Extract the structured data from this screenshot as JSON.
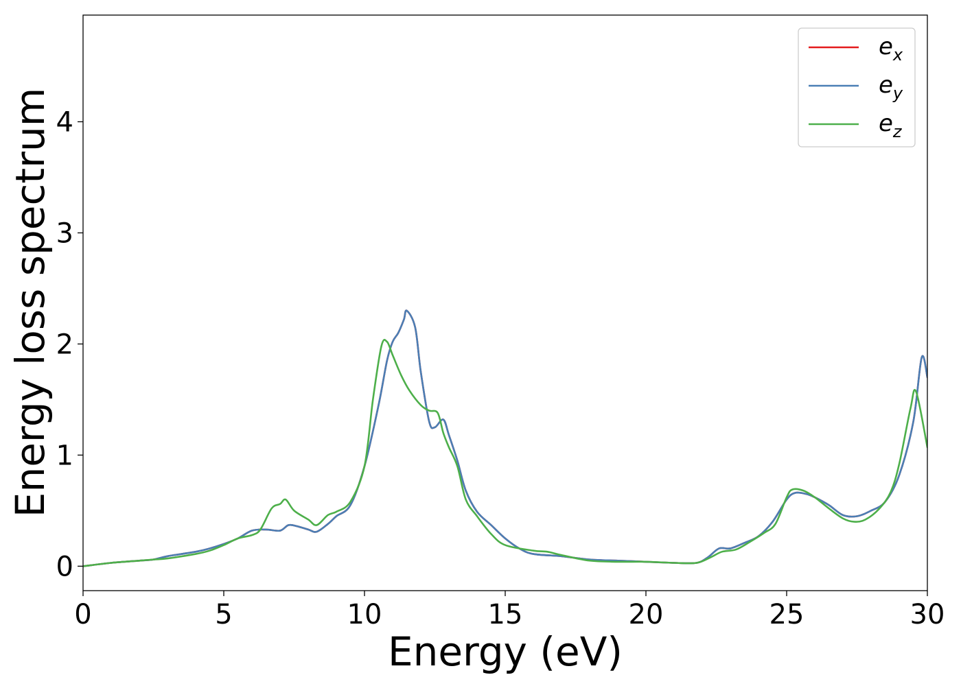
{
  "chart_data": {
    "type": "line",
    "xlabel": "Energy (eV)",
    "ylabel": "Energy loss spectrum",
    "xlim": [
      0,
      30
    ],
    "ylim": [
      -0.22,
      4.96
    ],
    "xticks": [
      0,
      5,
      10,
      15,
      20,
      25,
      30
    ],
    "yticks": [
      0,
      1,
      2,
      3,
      4
    ],
    "grid": false,
    "legend_position": "top-right",
    "series": [
      {
        "name": "e_x",
        "legend_base": "e",
        "legend_sub": "x",
        "color": "#e41a1c",
        "x": [
          0,
          1,
          2,
          2.5,
          3,
          4,
          4.5,
          5,
          5.5,
          6,
          6.5,
          7,
          7.3,
          7.6,
          8,
          8.3,
          8.7,
          9,
          9.5,
          10,
          10.5,
          10.8,
          11,
          11.2,
          11.4,
          11.5,
          11.8,
          12,
          12.3,
          12.5,
          12.8,
          13,
          13.3,
          13.6,
          14,
          14.5,
          15,
          15.5,
          16,
          17,
          18,
          19,
          20,
          21,
          21.8,
          22.2,
          22.6,
          23,
          23.5,
          24,
          24.5,
          25,
          25.3,
          25.7,
          26,
          26.5,
          27,
          27.5,
          28,
          28.5,
          29,
          29.5,
          29.8,
          30
        ],
        "y": [
          0.0,
          0.03,
          0.05,
          0.06,
          0.09,
          0.13,
          0.16,
          0.2,
          0.25,
          0.32,
          0.33,
          0.32,
          0.37,
          0.36,
          0.33,
          0.31,
          0.38,
          0.45,
          0.55,
          0.9,
          1.45,
          1.85,
          2.02,
          2.1,
          2.22,
          2.3,
          2.15,
          1.75,
          1.3,
          1.25,
          1.32,
          1.18,
          0.95,
          0.68,
          0.49,
          0.37,
          0.25,
          0.16,
          0.11,
          0.09,
          0.06,
          0.05,
          0.04,
          0.03,
          0.03,
          0.08,
          0.16,
          0.16,
          0.21,
          0.27,
          0.4,
          0.6,
          0.66,
          0.65,
          0.62,
          0.55,
          0.46,
          0.45,
          0.5,
          0.58,
          0.82,
          1.3,
          1.88,
          1.7
        ]
      },
      {
        "name": "e_y",
        "legend_base": "e",
        "legend_sub": "y",
        "color": "#4a7fb5",
        "x": [
          0,
          1,
          2,
          2.5,
          3,
          4,
          4.5,
          5,
          5.5,
          6,
          6.5,
          7,
          7.3,
          7.6,
          8,
          8.3,
          8.7,
          9,
          9.5,
          10,
          10.5,
          10.8,
          11,
          11.2,
          11.4,
          11.5,
          11.8,
          12,
          12.3,
          12.5,
          12.8,
          13,
          13.3,
          13.6,
          14,
          14.5,
          15,
          15.5,
          16,
          17,
          18,
          19,
          20,
          21,
          21.8,
          22.2,
          22.6,
          23,
          23.5,
          24,
          24.5,
          25,
          25.3,
          25.7,
          26,
          26.5,
          27,
          27.5,
          28,
          28.5,
          29,
          29.5,
          29.8,
          30
        ],
        "y": [
          0.0,
          0.03,
          0.05,
          0.06,
          0.09,
          0.13,
          0.16,
          0.2,
          0.25,
          0.32,
          0.33,
          0.32,
          0.37,
          0.36,
          0.33,
          0.31,
          0.38,
          0.45,
          0.55,
          0.9,
          1.45,
          1.85,
          2.02,
          2.1,
          2.22,
          2.3,
          2.15,
          1.75,
          1.3,
          1.25,
          1.32,
          1.18,
          0.95,
          0.68,
          0.49,
          0.37,
          0.25,
          0.16,
          0.11,
          0.09,
          0.06,
          0.05,
          0.04,
          0.03,
          0.03,
          0.08,
          0.16,
          0.16,
          0.21,
          0.27,
          0.4,
          0.6,
          0.66,
          0.65,
          0.62,
          0.55,
          0.46,
          0.45,
          0.5,
          0.58,
          0.82,
          1.3,
          1.88,
          1.7
        ]
      },
      {
        "name": "e_z",
        "legend_base": "e",
        "legend_sub": "z",
        "color": "#4daf4a",
        "x": [
          0,
          1,
          2,
          2.5,
          3,
          4,
          4.5,
          5,
          5.5,
          6,
          6.3,
          6.7,
          7,
          7.2,
          7.5,
          8,
          8.3,
          8.7,
          9,
          9.5,
          10,
          10.3,
          10.6,
          10.8,
          11,
          11.3,
          11.6,
          12,
          12.3,
          12.6,
          12.8,
          13,
          13.3,
          13.6,
          14,
          14.5,
          15,
          16,
          16.5,
          17,
          18,
          19,
          20,
          21,
          21.8,
          22.3,
          22.7,
          23.2,
          23.7,
          24.2,
          24.6,
          25,
          25.2,
          25.6,
          26,
          26.5,
          27,
          27.4,
          27.8,
          28.3,
          28.7,
          29,
          29.4,
          29.6,
          30
        ],
        "y": [
          0.0,
          0.03,
          0.05,
          0.06,
          0.07,
          0.11,
          0.14,
          0.19,
          0.25,
          0.28,
          0.33,
          0.52,
          0.56,
          0.6,
          0.5,
          0.42,
          0.37,
          0.46,
          0.49,
          0.58,
          0.9,
          1.5,
          1.98,
          2.02,
          1.9,
          1.72,
          1.58,
          1.45,
          1.4,
          1.38,
          1.2,
          1.07,
          0.9,
          0.6,
          0.45,
          0.29,
          0.19,
          0.14,
          0.13,
          0.1,
          0.05,
          0.04,
          0.04,
          0.03,
          0.03,
          0.08,
          0.13,
          0.15,
          0.22,
          0.3,
          0.38,
          0.62,
          0.69,
          0.68,
          0.62,
          0.52,
          0.43,
          0.4,
          0.42,
          0.52,
          0.67,
          0.92,
          1.42,
          1.57,
          1.07
        ]
      }
    ]
  }
}
